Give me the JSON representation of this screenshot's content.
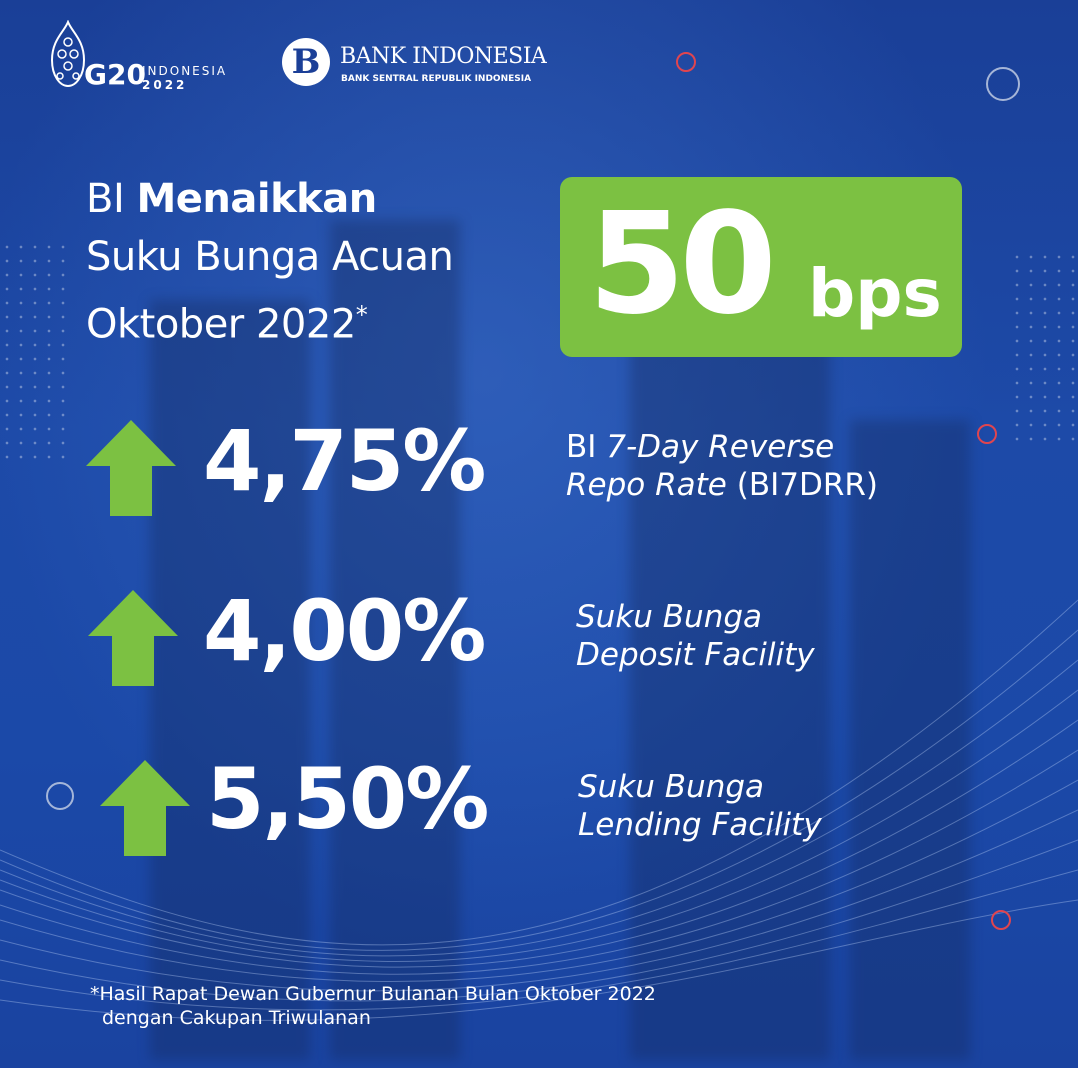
{
  "logos": {
    "g20": {
      "mark": "G20",
      "line1": "INDONESIA",
      "line2": "2022"
    },
    "bi": {
      "mark": "B",
      "name": "BANK INDONESIA",
      "tagline": "BANK SENTRAL REPUBLIK INDONESIA"
    }
  },
  "headline": {
    "line1_prefix": "BI",
    "line1_bold": "Menaikkan",
    "line2": "Suku Bunga Acuan",
    "line3": "Oktober 2022",
    "asterisk": "*"
  },
  "increase": {
    "value": "50",
    "unit": "bps"
  },
  "rates": [
    {
      "value": "4,75%",
      "label_parts": [
        {
          "t": "BI ",
          "italic": false
        },
        {
          "t": "7-Day Reverse",
          "italic": true
        }
      ],
      "label_line2_parts": [
        {
          "t": "Repo Rate ",
          "italic": true
        },
        {
          "t": "(BI7DRR)",
          "italic": false
        }
      ],
      "icon": "arrow-up-icon"
    },
    {
      "value": "4,00%",
      "label_line1": "Suku Bunga",
      "label_line2": "Deposit Facility",
      "icon": "arrow-up-icon"
    },
    {
      "value": "5,50%",
      "label_line1": "Suku Bunga",
      "label_line2": "Lending Facility",
      "icon": "arrow-up-icon"
    }
  ],
  "footnote": {
    "line1": "*Hasil Rapat Dewan Gubernur Bulanan Bulan Oktober 2022",
    "line2": "dengan Cakupan Triwulanan"
  },
  "colors": {
    "background": "#1b49a8",
    "accent_green": "#7cc142",
    "ring_red": "#e0454f",
    "text": "#ffffff"
  }
}
